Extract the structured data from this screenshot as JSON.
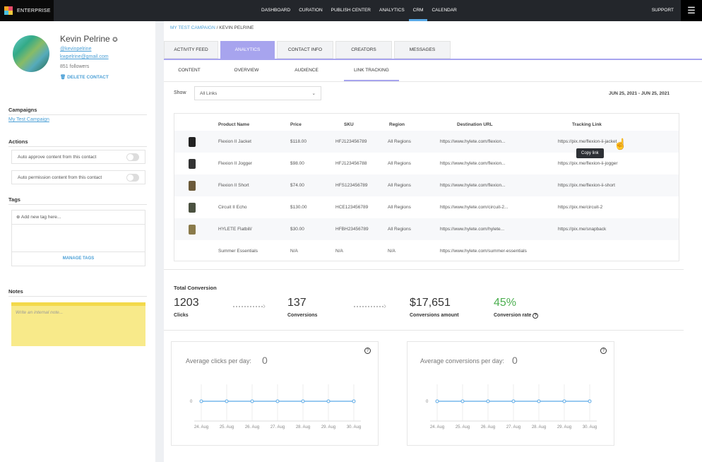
{
  "brand": "ENTERPRISE",
  "nav": [
    "DASHBOARD",
    "CURATION",
    "PUBLISH CENTER",
    "ANALYTICS",
    "CRM",
    "CALENDAR"
  ],
  "nav_active": "CRM",
  "support": "SUPPORT",
  "profile": {
    "name": "Kevin Pelrine",
    "handle": "@kevinpelrine",
    "email": "kwpelrine@gmail.com",
    "followers": "851 followers",
    "delete": "DELETE CONTACT"
  },
  "campaigns": {
    "title": "Campaigns",
    "items": [
      "My Test Campaign"
    ]
  },
  "actions": {
    "title": "Actions",
    "items": [
      "Auto approve content from this contact",
      "Auto permission content from this contact"
    ]
  },
  "tags": {
    "title": "Tags",
    "add": "Add new tag here...",
    "manage": "MANAGE TAGS"
  },
  "notes": {
    "title": "Notes",
    "placeholder": "Write an internal note..."
  },
  "breadcrumb": {
    "campaign": "MY TEST CAMPAIGN",
    "sep": " / ",
    "contact": "KEVIN PELRINE"
  },
  "tabs": [
    "ACTIVITY FEED",
    "ANALYTICS",
    "CONTACT INFO",
    "CREATORS",
    "MESSAGES"
  ],
  "subtabs": [
    "CONTENT",
    "OVERVIEW",
    "AUDIENCE",
    "LINK TRACKING"
  ],
  "filter": {
    "label": "Show",
    "value": "All Links",
    "date": "JUN 25, 2021 - JUN 25, 2021"
  },
  "table": {
    "headers": [
      "Product Name",
      "Price",
      "SKU",
      "Region",
      "Destination URL",
      "Tracking Link"
    ],
    "rows": [
      {
        "name": "Flexion II Jacket",
        "price": "$118.00",
        "sku": "HFJ123456789",
        "region": "All Regions",
        "dest": "https://www.hylete.com/flexion...",
        "track": "https://pix.me/flexion-ii-jacket",
        "color": "#222"
      },
      {
        "name": "Flexion II Jogger",
        "price": "$98.00",
        "sku": "HFJ123456788",
        "region": "All Regions",
        "dest": "https://www.hylete.com/flexion...",
        "track": "https://pix.me/flexion-ii-jogger",
        "color": "#333"
      },
      {
        "name": "Flexion II Short",
        "price": "$74.00",
        "sku": "HFS123456789",
        "region": "All Regions",
        "dest": "https://www.hylete.com/flexion...",
        "track": "https://pix.me/flexion-ii-short",
        "color": "#6b5a3a"
      },
      {
        "name": "Circuit II Echo",
        "price": "$130.00",
        "sku": "HCE123456789",
        "region": "All Regions",
        "dest": "https://www.hylete.com/circuit-2...",
        "track": "https://pix.me/circuit-2",
        "color": "#4b5140"
      },
      {
        "name": "HYLETE Flatbill/",
        "price": "$30.00",
        "sku": "HFBH23456789",
        "region": "All Regions",
        "dest": "https://www.hylete.com/hylete...",
        "track": "https://pix.me/snapback",
        "color": "#8a7a4a"
      },
      {
        "name": "Summer Essentials",
        "price": "N/A",
        "sku": "N/A",
        "region": "N/A",
        "dest": "https://www.hylete.com/summer-essentials",
        "track": "",
        "color": ""
      }
    ],
    "tooltip": "Copy link"
  },
  "totals": {
    "title": "Total Conversion",
    "clicks": "1203",
    "clicks_label": "Clicks",
    "conversions": "137",
    "conversions_label": "Conversions",
    "amount": "$17,651",
    "amount_label": "Conversions amount",
    "rate": "45%",
    "rate_label": "Conversion rate",
    "rate_color": "#4caf50"
  },
  "chart_data": [
    {
      "type": "line",
      "title": "Average clicks per day:",
      "value": "0",
      "x": [
        "24. Aug",
        "25. Aug",
        "26. Aug",
        "27. Aug",
        "28. Aug",
        "29. Aug",
        "30. Aug"
      ],
      "values": [
        0,
        0,
        0,
        0,
        0,
        0,
        0
      ],
      "yticks": [
        "0"
      ],
      "color": "#5aa9e6"
    },
    {
      "type": "line",
      "title": "Average conversions per day:",
      "value": "0",
      "x": [
        "24. Aug",
        "25. Aug",
        "26. Aug",
        "27. Aug",
        "28. Aug",
        "29. Aug",
        "30. Aug"
      ],
      "values": [
        0,
        0,
        0,
        0,
        0,
        0,
        0
      ],
      "yticks": [
        "0"
      ],
      "color": "#5aa9e6"
    }
  ]
}
